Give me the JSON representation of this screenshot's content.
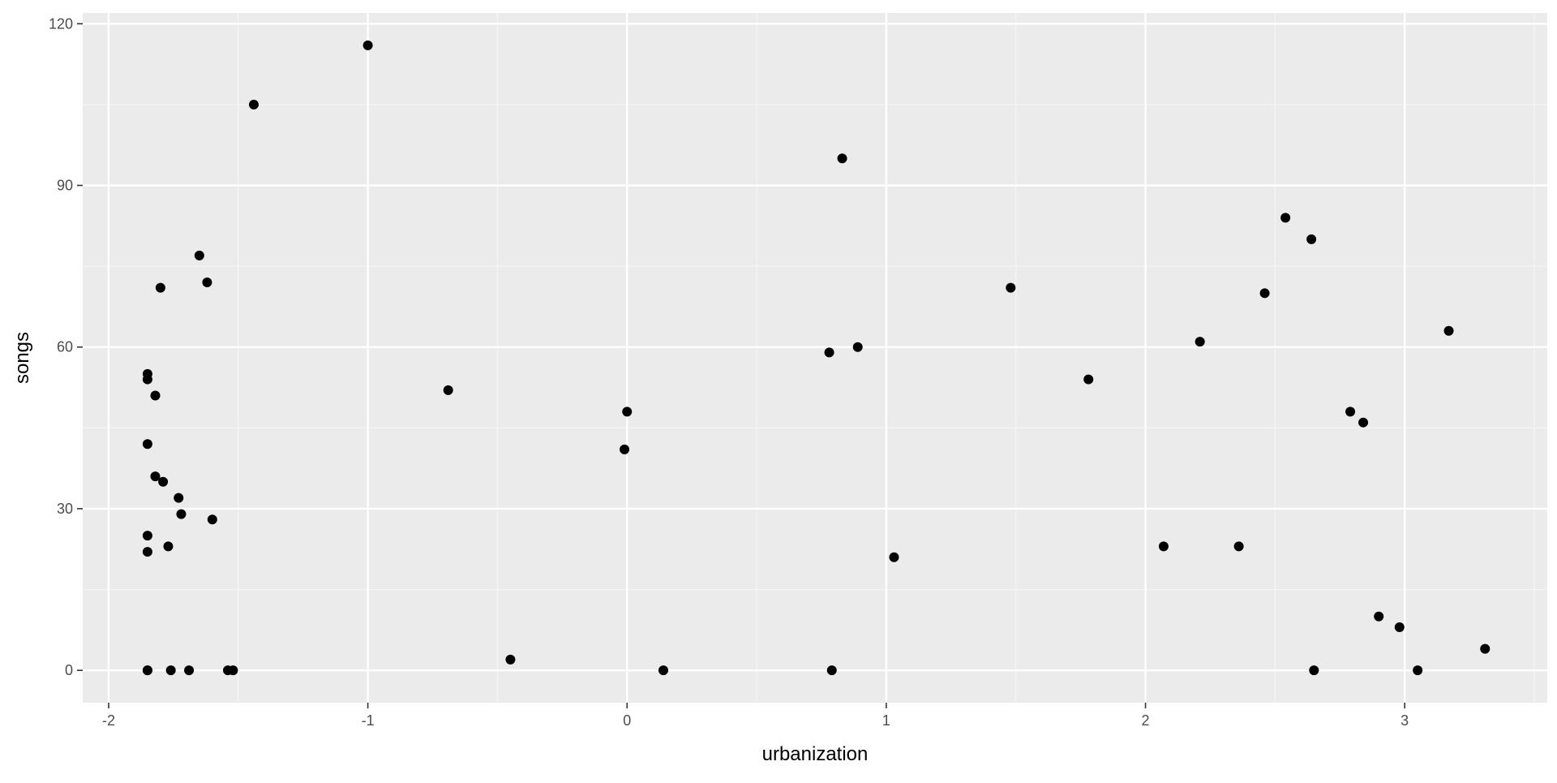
{
  "colors": {
    "panel_background": "#EBEBEB",
    "grid_major": "#FFFFFF",
    "grid_minor": "#F5F5F5",
    "point": "#000000",
    "tick_text": "#4D4D4D",
    "tick_mark": "#333333"
  },
  "chart_data": {
    "type": "scatter",
    "xlabel": "urbanization",
    "ylabel": "songs",
    "xlim": [
      -2.1,
      3.55
    ],
    "ylim": [
      -6,
      122
    ],
    "x_ticks": [
      -2,
      -1,
      0,
      1,
      2,
      3
    ],
    "y_ticks": [
      0,
      30,
      60,
      90,
      120
    ],
    "grid": true,
    "legend": "none",
    "series": [
      {
        "points": [
          {
            "x": -1.85,
            "y": 0
          },
          {
            "x": -1.85,
            "y": 0
          },
          {
            "x": -1.76,
            "y": 0
          },
          {
            "x": -1.69,
            "y": 0
          },
          {
            "x": -1.54,
            "y": 0
          },
          {
            "x": -1.52,
            "y": 0
          },
          {
            "x": -1.85,
            "y": 22
          },
          {
            "x": -1.85,
            "y": 25
          },
          {
            "x": -1.77,
            "y": 23
          },
          {
            "x": -1.72,
            "y": 29
          },
          {
            "x": -1.73,
            "y": 32
          },
          {
            "x": -1.6,
            "y": 28
          },
          {
            "x": -1.79,
            "y": 35
          },
          {
            "x": -1.82,
            "y": 36
          },
          {
            "x": -1.85,
            "y": 42
          },
          {
            "x": -1.82,
            "y": 51
          },
          {
            "x": -1.85,
            "y": 54
          },
          {
            "x": -1.85,
            "y": 55
          },
          {
            "x": -1.8,
            "y": 71
          },
          {
            "x": -1.65,
            "y": 77
          },
          {
            "x": -1.62,
            "y": 72
          },
          {
            "x": -1.44,
            "y": 105
          },
          {
            "x": -1.0,
            "y": 116
          },
          {
            "x": -0.69,
            "y": 52
          },
          {
            "x": -0.45,
            "y": 2
          },
          {
            "x": -0.01,
            "y": 41
          },
          {
            "x": 0.0,
            "y": 48
          },
          {
            "x": 0.14,
            "y": 0
          },
          {
            "x": 0.78,
            "y": 59
          },
          {
            "x": 0.79,
            "y": 0
          },
          {
            "x": 0.83,
            "y": 95
          },
          {
            "x": 0.89,
            "y": 60
          },
          {
            "x": 1.03,
            "y": 21
          },
          {
            "x": 1.48,
            "y": 71
          },
          {
            "x": 1.78,
            "y": 54
          },
          {
            "x": 2.07,
            "y": 23
          },
          {
            "x": 2.21,
            "y": 61
          },
          {
            "x": 2.36,
            "y": 23
          },
          {
            "x": 2.46,
            "y": 70
          },
          {
            "x": 2.54,
            "y": 84
          },
          {
            "x": 2.64,
            "y": 80
          },
          {
            "x": 2.65,
            "y": 0
          },
          {
            "x": 2.79,
            "y": 48
          },
          {
            "x": 2.84,
            "y": 46
          },
          {
            "x": 2.9,
            "y": 10
          },
          {
            "x": 2.98,
            "y": 8
          },
          {
            "x": 3.05,
            "y": 0
          },
          {
            "x": 3.17,
            "y": 63
          },
          {
            "x": 3.31,
            "y": 4
          }
        ]
      }
    ]
  }
}
